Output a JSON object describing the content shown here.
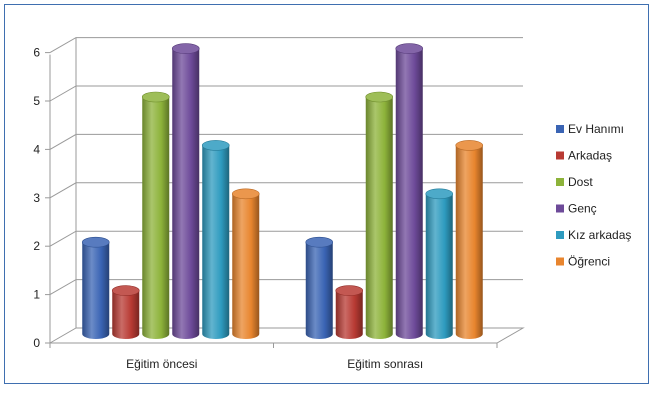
{
  "chart_data": {
    "type": "bar",
    "style": "3d-cylinder",
    "categories": [
      "Eğitim öncesi",
      "Eğitim sonrası"
    ],
    "series": [
      {
        "name": "Ev Hanımı",
        "values": [
          2,
          2
        ],
        "color": "#3a64b4"
      },
      {
        "name": "Arkadaş",
        "values": [
          1,
          1
        ],
        "color": "#b83a33"
      },
      {
        "name": "Dost",
        "values": [
          5,
          5
        ],
        "color": "#8db33a"
      },
      {
        "name": "Genç",
        "values": [
          6,
          6
        ],
        "color": "#6d4a99"
      },
      {
        "name": "Kız arkadaş",
        "values": [
          4,
          3
        ],
        "color": "#2e9bbf"
      },
      {
        "name": "Öğrenci",
        "values": [
          3,
          4
        ],
        "color": "#e8852e"
      }
    ],
    "yticks": [
      "0",
      "1",
      "2",
      "3",
      "4",
      "5",
      "6"
    ],
    "ylim": [
      0,
      6
    ],
    "grid": true,
    "legend_position": "right"
  }
}
